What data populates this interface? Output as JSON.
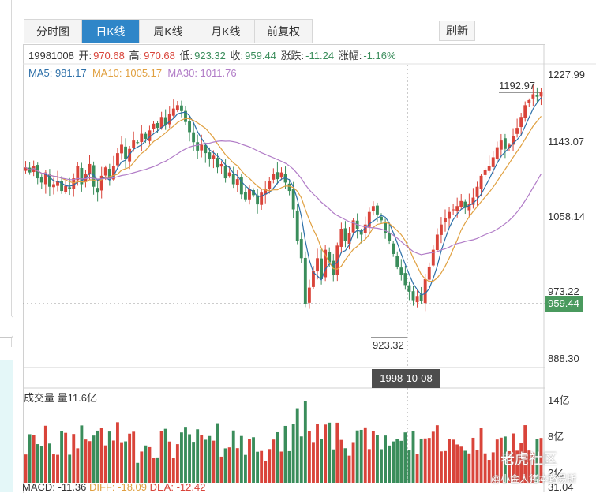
{
  "tabs": [
    "分时图",
    "日K线",
    "周K线",
    "月K线",
    "前复权"
  ],
  "active_tab": 1,
  "refresh_label": "刷新",
  "info": {
    "date": "19981008",
    "open_label": "开:",
    "open": "970.68",
    "high_label": "高:",
    "high": "970.68",
    "low_label": "低:",
    "low": "923.32",
    "close_label": "收:",
    "close": "959.44",
    "change_label": "涨跌:",
    "change": "-11.24",
    "pct_label": "涨幅:",
    "pct": "-1.16%"
  },
  "ma_legend": {
    "ma5": "MA5: 981.17",
    "ma10": "MA10: 1005.17",
    "ma30": "MA30: 1011.76"
  },
  "price_axis": [
    "1227.99",
    "1143.07",
    "1058.14",
    "973.22",
    "888.30"
  ],
  "current_price_tag": "959.44",
  "max_annotation": "1192.97",
  "min_annotation": "923.32",
  "crosshair_date": "1998-10-08",
  "volume": {
    "legend": "成交量 量11.6亿",
    "axis": [
      "14亿",
      "8亿",
      "2亿"
    ]
  },
  "macd": {
    "macd": "MACD: -11.36",
    "diff": "DIFF: -18.09",
    "dea": "DEA: -12.42",
    "extra": "31.04"
  },
  "watermark": {
    "main": "老虎社区",
    "sub": "@小金人猪本路易斯"
  },
  "colors": {
    "up": "#d9443a",
    "down": "#3a8d5b",
    "ma5": "#2c6fa8",
    "ma10": "#e0a040",
    "ma30": "#b17cc7",
    "active_tab": "#2f86c8"
  },
  "chart_data": {
    "type": "candlestick",
    "ylim": [
      888.3,
      1227.99
    ],
    "closes": [
      1118,
      1112,
      1120,
      1105,
      1100,
      1112,
      1095,
      1098,
      1102,
      1090,
      1096,
      1092,
      1105,
      1120,
      1098,
      1110,
      1122,
      1095,
      1088,
      1108,
      1118,
      1105,
      1120,
      1135,
      1145,
      1128,
      1140,
      1150,
      1148,
      1158,
      1152,
      1162,
      1170,
      1165,
      1178,
      1168,
      1182,
      1188,
      1192,
      1185,
      1172,
      1160,
      1148,
      1138,
      1145,
      1135,
      1128,
      1132,
      1118,
      1122,
      1105,
      1112,
      1098,
      1104,
      1086,
      1080,
      1092,
      1085,
      1074,
      1088,
      1092,
      1102,
      1110,
      1104,
      1112,
      1100,
      1090,
      1068,
      1030,
      1010,
      955,
      975,
      995,
      1010,
      985,
      1020,
      1005,
      990,
      1025,
      1045,
      1030,
      1040,
      1055,
      1045,
      1038,
      1050,
      1065,
      1072,
      1062,
      1055,
      1040,
      1030,
      1015,
      1000,
      990,
      978,
      970,
      960,
      965,
      959,
      985,
      1000,
      1020,
      1038,
      1050,
      1058,
      1065,
      1068,
      1072,
      1078,
      1070,
      1075,
      1082,
      1095,
      1108,
      1115,
      1120,
      1130,
      1142,
      1150,
      1140,
      1145,
      1155,
      1165,
      1178,
      1192,
      1198,
      1205,
      1202,
      1208
    ],
    "volume_range_yi": [
      0,
      15
    ]
  }
}
